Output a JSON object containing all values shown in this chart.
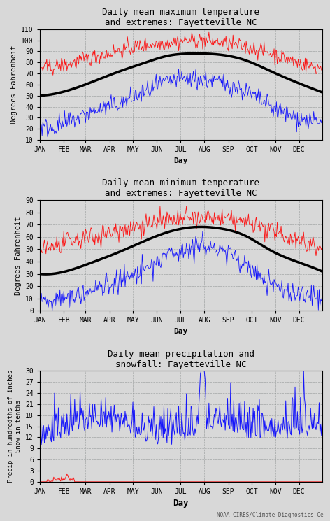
{
  "title1": "Daily mean maximum temperature\nand extremes: Fayetteville NC",
  "title2": "Daily mean minimum temperature\nand extremes: Fayetteville NC",
  "title3": "Daily mean precipitation and\nsnowfall: Fayetteville NC",
  "ylabel1": "Degrees Fahrenheit",
  "ylabel2": "Degrees Fahrenheit",
  "ylabel3": "Precip in hundredths of inches\nSnow in tenths",
  "xlabel": "Day",
  "months": [
    "JAN",
    "FEB",
    "MAR",
    "APR",
    "MAY",
    "JUN",
    "JUL",
    "AUG",
    "SEP",
    "OCT",
    "NOV",
    "DEC"
  ],
  "month_days": [
    0,
    31,
    59,
    90,
    120,
    151,
    181,
    212,
    243,
    273,
    304,
    334
  ],
  "ylim1": [
    10,
    110
  ],
  "ylim2": [
    0,
    90
  ],
  "ylim3": [
    0,
    30
  ],
  "yticks1": [
    10,
    20,
    30,
    40,
    50,
    60,
    70,
    80,
    90,
    100,
    110
  ],
  "yticks2": [
    0,
    10,
    20,
    30,
    40,
    50,
    60,
    70,
    80,
    90
  ],
  "yticks3": [
    0,
    3,
    6,
    9,
    12,
    15,
    18,
    21,
    24,
    27,
    30
  ],
  "watermark": "NOAA-CIRES/Climate Diagnostics Ce",
  "background_color": "#d8d8d8",
  "plot_bg_color": "#d8d8d8"
}
